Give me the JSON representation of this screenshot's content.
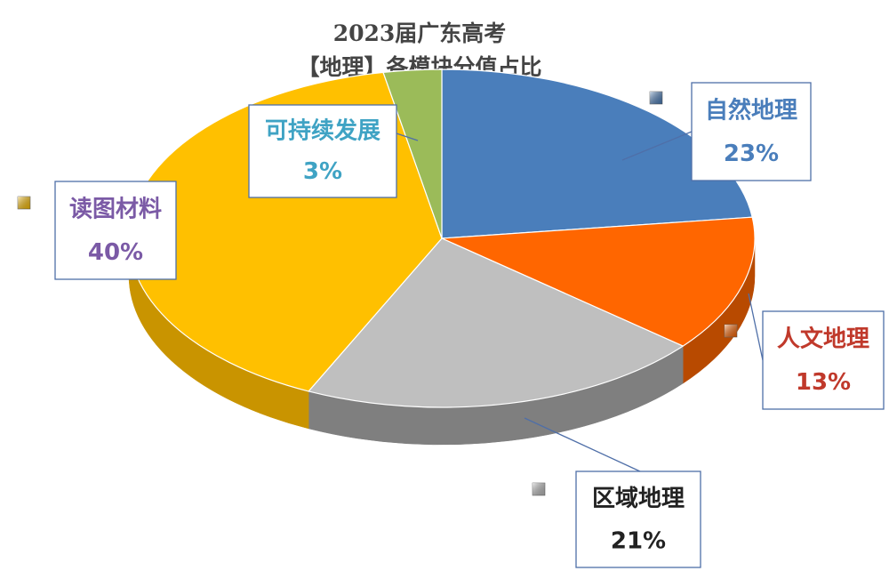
{
  "chart_data": {
    "type": "pie",
    "title": "2023届广东高考",
    "subtitle": "【地理】各模块分值占比",
    "slices": [
      {
        "label": "自然地理",
        "percent_label": "23%",
        "value": 23,
        "color": "#4a7ebb",
        "side_color": "#2f5d96",
        "label_color": "#4a7ebb"
      },
      {
        "label": "人文地理",
        "percent_label": "13%",
        "value": 13,
        "color": "#ff6600",
        "side_color": "#b84a00",
        "label_color": "#c0392b"
      },
      {
        "label": "区域地理",
        "percent_label": "21%",
        "value": 21,
        "color": "#bfbfbf",
        "side_color": "#7f7f7f",
        "label_color": "#222222"
      },
      {
        "label": "读图材料",
        "percent_label": "40%",
        "value": 40,
        "color": "#ffc000",
        "side_color": "#c99400",
        "label_color": "#7b5aa6"
      },
      {
        "label": "可持续发展",
        "percent_label": "3%",
        "value": 3,
        "color": "#9bbb59",
        "side_color": "#6f8a3c",
        "label_color": "#3fa3c4"
      }
    ],
    "legend_marker_colors": [
      "#4a7ebb",
      "#ff6600",
      "#bfbfbf",
      "#ffc000"
    ]
  }
}
